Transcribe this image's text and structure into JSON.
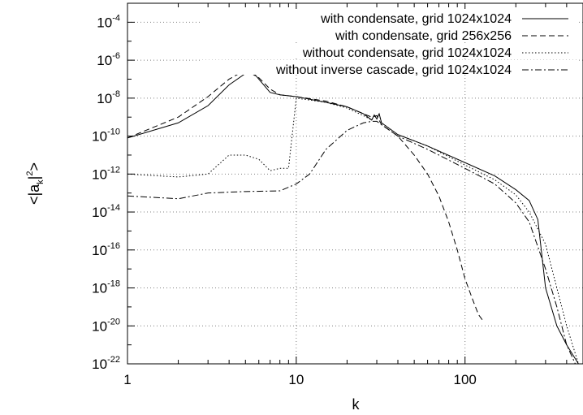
{
  "chart_data": {
    "type": "line",
    "xlabel": "k",
    "ylabel": "<|a_k|^2>",
    "x_scale": "log",
    "y_scale": "log",
    "xlim": [
      1,
      500
    ],
    "ylim": [
      1e-22,
      0.001
    ],
    "grid": true,
    "legend_position": "top-right",
    "x_ticks": [
      {
        "value": 1,
        "label": "1"
      },
      {
        "value": 10,
        "label": "10"
      },
      {
        "value": 100,
        "label": "100"
      }
    ],
    "y_ticks": [
      {
        "value": 0.0001,
        "base": "10",
        "exp": "-4"
      },
      {
        "value": 1e-06,
        "base": "10",
        "exp": "-6"
      },
      {
        "value": 1e-08,
        "base": "10",
        "exp": "-8"
      },
      {
        "value": 1e-10,
        "base": "10",
        "exp": "-10"
      },
      {
        "value": 1e-12,
        "base": "10",
        "exp": "-12"
      },
      {
        "value": 1e-14,
        "base": "10",
        "exp": "-14"
      },
      {
        "value": 1e-16,
        "base": "10",
        "exp": "-16"
      },
      {
        "value": 1e-18,
        "base": "10",
        "exp": "-18"
      },
      {
        "value": 1e-20,
        "base": "10",
        "exp": "-20"
      },
      {
        "value": 1e-22,
        "base": "10",
        "exp": "-22"
      }
    ],
    "series": [
      {
        "name": "with condensate, grid 1024x1024",
        "style": "solid",
        "points": [
          [
            1,
            8e-11
          ],
          [
            2,
            5e-10
          ],
          [
            3,
            4e-09
          ],
          [
            4,
            5e-08
          ],
          [
            5,
            2e-07
          ],
          [
            5.5,
            2.5e-07
          ],
          [
            6,
            1e-07
          ],
          [
            7,
            2e-08
          ],
          [
            8,
            1.5e-08
          ],
          [
            10,
            1.2e-08
          ],
          [
            15,
            6e-09
          ],
          [
            20,
            3.5e-09
          ],
          [
            25,
            1.5e-09
          ],
          [
            28,
            7e-10
          ],
          [
            29,
            1.3e-09
          ],
          [
            30,
            8e-10
          ],
          [
            31,
            1.5e-09
          ],
          [
            32,
            5e-10
          ],
          [
            40,
            1.2e-10
          ],
          [
            60,
            3e-11
          ],
          [
            100,
            4e-12
          ],
          [
            150,
            8e-13
          ],
          [
            200,
            1.5e-13
          ],
          [
            240,
            4e-14
          ],
          [
            270,
            4e-15
          ],
          [
            300,
            1e-18
          ],
          [
            350,
            1e-20
          ],
          [
            400,
            1e-21
          ],
          [
            470,
            1e-22
          ]
        ]
      },
      {
        "name": "with condensate, grid 256x256",
        "style": "dashed",
        "points": [
          [
            1,
            8e-11
          ],
          [
            2,
            1e-09
          ],
          [
            3,
            1.2e-08
          ],
          [
            4,
            1e-07
          ],
          [
            5,
            3e-07
          ],
          [
            6,
            1.2e-07
          ],
          [
            7,
            3e-08
          ],
          [
            8,
            1.5e-08
          ],
          [
            10,
            1.2e-08
          ],
          [
            15,
            7e-09
          ],
          [
            20,
            3.5e-09
          ],
          [
            25,
            1.5e-09
          ],
          [
            28,
            1e-09
          ],
          [
            30,
            1.2e-09
          ],
          [
            32,
            4e-10
          ],
          [
            40,
            1e-10
          ],
          [
            50,
            1e-11
          ],
          [
            60,
            1e-12
          ],
          [
            70,
            7e-14
          ],
          [
            80,
            3e-15
          ],
          [
            90,
            1e-16
          ],
          [
            100,
            3e-18
          ],
          [
            110,
            3e-19
          ],
          [
            120,
            4e-20
          ],
          [
            127,
            2e-20
          ]
        ]
      },
      {
        "name": "without condensate, grid 1024x1024",
        "style": "dotted",
        "points": [
          [
            1,
            1e-12
          ],
          [
            2,
            7e-13
          ],
          [
            3,
            1e-12
          ],
          [
            4,
            1e-11
          ],
          [
            5,
            1e-11
          ],
          [
            6,
            6e-12
          ],
          [
            7,
            1.5e-12
          ],
          [
            8,
            2e-12
          ],
          [
            9,
            2e-12
          ],
          [
            10,
            1e-08
          ],
          [
            15,
            6e-09
          ],
          [
            20,
            3e-09
          ],
          [
            25,
            1.2e-09
          ],
          [
            28,
            7e-10
          ],
          [
            29,
            1.3e-09
          ],
          [
            30,
            8e-10
          ],
          [
            31,
            1.5e-09
          ],
          [
            32,
            5e-10
          ],
          [
            40,
            1.2e-10
          ],
          [
            60,
            3e-11
          ],
          [
            100,
            3e-12
          ],
          [
            150,
            5e-13
          ],
          [
            200,
            8e-14
          ],
          [
            240,
            1e-14
          ],
          [
            300,
            2e-16
          ],
          [
            350,
            1e-18
          ],
          [
            400,
            1e-20
          ],
          [
            470,
            1e-22
          ]
        ]
      },
      {
        "name": "without inverse cascade, grid 1024x1024",
        "style": "dashdot",
        "points": [
          [
            1,
            7e-14
          ],
          [
            2,
            5e-14
          ],
          [
            3,
            1e-13
          ],
          [
            5,
            1.2e-13
          ],
          [
            8,
            1.3e-13
          ],
          [
            10,
            3e-13
          ],
          [
            12,
            1e-12
          ],
          [
            15,
            2e-11
          ],
          [
            20,
            2e-10
          ],
          [
            25,
            5e-10
          ],
          [
            28,
            6e-10
          ],
          [
            30,
            6e-10
          ],
          [
            32,
            4e-10
          ],
          [
            40,
            1e-10
          ],
          [
            60,
            2e-11
          ],
          [
            100,
            2e-12
          ],
          [
            150,
            3e-13
          ],
          [
            200,
            3e-14
          ],
          [
            240,
            3e-15
          ],
          [
            300,
            1e-17
          ],
          [
            350,
            1e-19
          ],
          [
            400,
            1e-21
          ],
          [
            450,
            1e-22
          ]
        ]
      }
    ]
  }
}
